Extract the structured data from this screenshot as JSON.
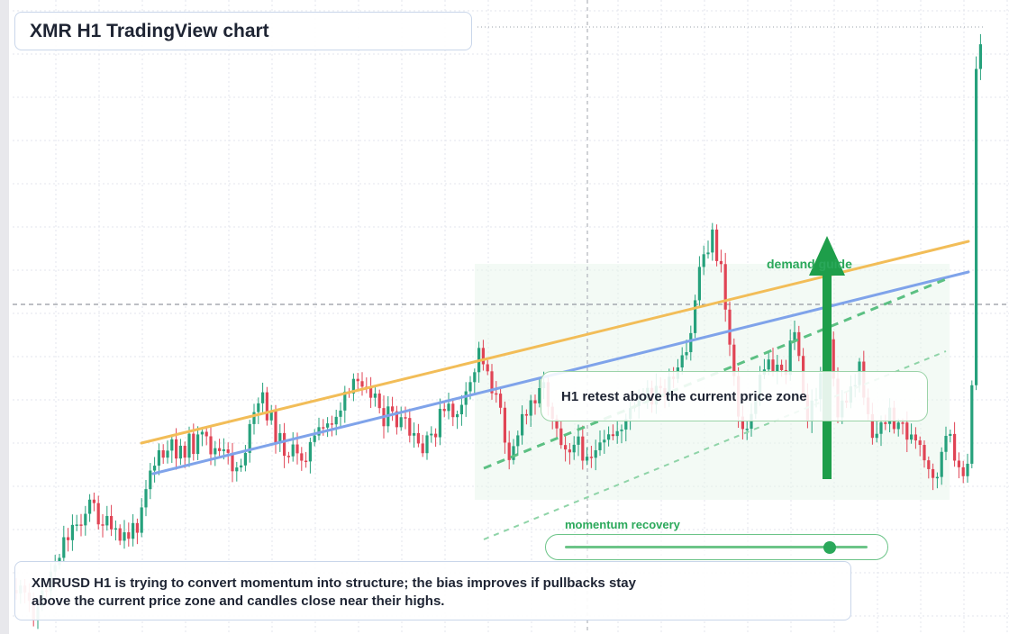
{
  "title": "XMR H1 TradingView chart",
  "retest_note": "H1 retest above the current price zone",
  "demand_label": "demand guide",
  "momentum": {
    "label": "momentum recovery",
    "level": 0.87
  },
  "summary": "XMRUSD H1 is trying to convert momentum into structure; the bias improves if pullbacks stay above the current price zone and candles close near their highs.",
  "colors": {
    "up": "#26a17c",
    "down": "#e04455",
    "accent_green": "#2aa85a",
    "resistance_line": "#f2bd58",
    "support_line": "#7fa3ea",
    "grid": "#e3e6ec"
  },
  "icons": [
    "arrow-up-icon",
    "slider-knob"
  ]
}
